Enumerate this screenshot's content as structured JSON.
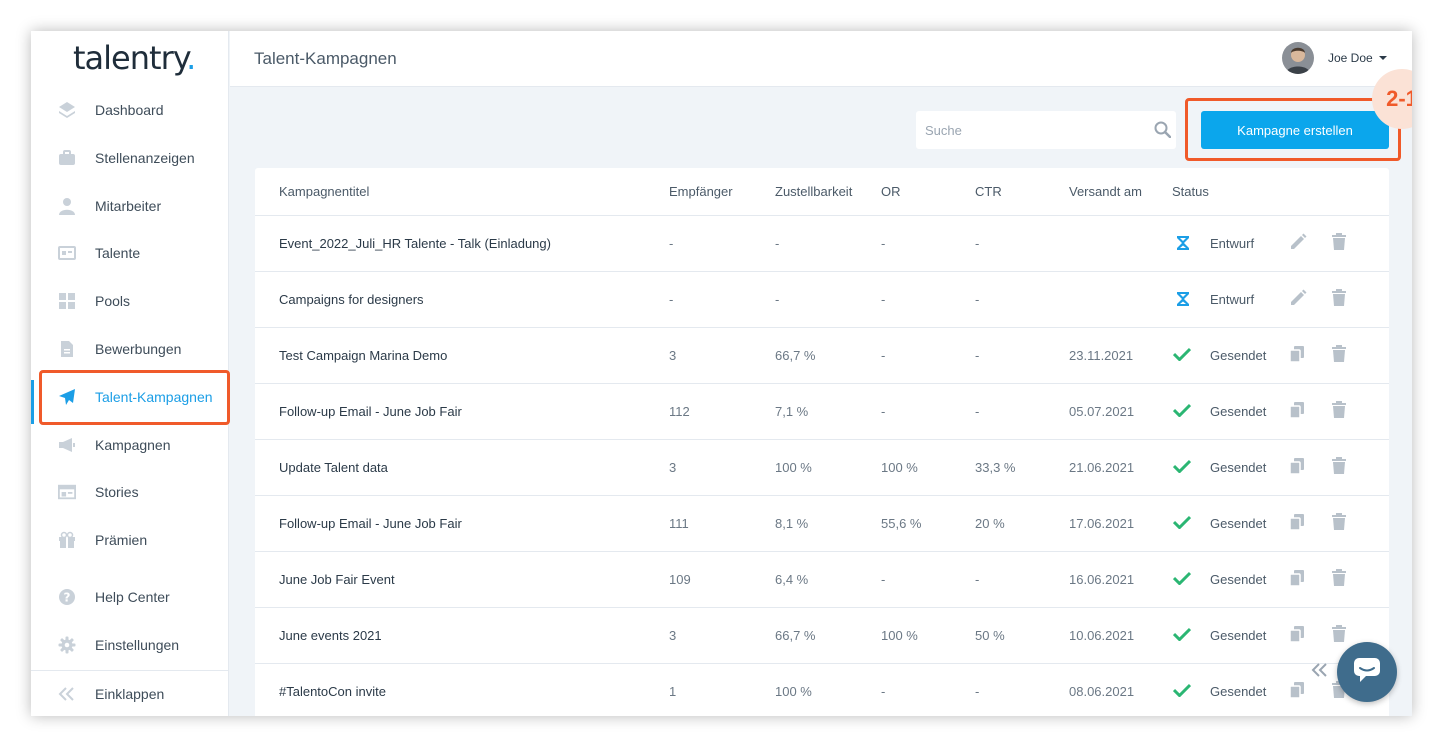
{
  "app": {
    "logo_text": "talentry",
    "logo_dot": "."
  },
  "header": {
    "title": "Talent-Kampagnen",
    "user_name": "Joe Doe"
  },
  "sidebar": {
    "items": [
      {
        "label": "Dashboard",
        "icon": "layers-icon"
      },
      {
        "label": "Stellenanzeigen",
        "icon": "briefcase-icon"
      },
      {
        "label": "Mitarbeiter",
        "icon": "person-icon"
      },
      {
        "label": "Talente",
        "icon": "id-card-icon"
      },
      {
        "label": "Pools",
        "icon": "grid-icon"
      },
      {
        "label": "Bewerbungen",
        "icon": "document-icon"
      },
      {
        "label": "Talent-Kampagnen",
        "icon": "paper-plane-icon",
        "active": true
      },
      {
        "label": "Kampagnen",
        "icon": "megaphone-icon"
      },
      {
        "label": "Stories",
        "icon": "newspaper-icon"
      },
      {
        "label": "Prämien",
        "icon": "gift-icon"
      },
      {
        "label": "Help Center",
        "icon": "help-icon"
      },
      {
        "label": "Einstellungen",
        "icon": "gear-icon"
      },
      {
        "label": "Einklappen",
        "icon": "double-chevron-left-icon"
      }
    ]
  },
  "toolbar": {
    "search_placeholder": "Suche",
    "create_label": "Kampagne erstellen",
    "step_badge": "2-1"
  },
  "table": {
    "columns": [
      "Kampagnentitel",
      "Empfänger",
      "Zustellbarkeit",
      "OR",
      "CTR",
      "Versandt am",
      "Status"
    ],
    "rows": [
      {
        "title": "Event_2022_Juli_HR Talente - Talk (Einladung)",
        "recipients": "-",
        "deliverability": "-",
        "or": "-",
        "ctr": "-",
        "sent": "",
        "status": "Entwurf"
      },
      {
        "title": "Campaigns for designers",
        "recipients": "-",
        "deliverability": "-",
        "or": "-",
        "ctr": "-",
        "sent": "",
        "status": "Entwurf"
      },
      {
        "title": "Test Campaign Marina Demo",
        "recipients": "3",
        "deliverability": "66,7 %",
        "or": "-",
        "ctr": "-",
        "sent": "23.11.2021",
        "status": "Gesendet"
      },
      {
        "title": "Follow-up Email - June Job Fair",
        "recipients": "112",
        "deliverability": "7,1 %",
        "or": "-",
        "ctr": "-",
        "sent": "05.07.2021",
        "status": "Gesendet"
      },
      {
        "title": "Update Talent data",
        "recipients": "3",
        "deliverability": "100 %",
        "or": "100 %",
        "ctr": "33,3 %",
        "sent": "21.06.2021",
        "status": "Gesendet"
      },
      {
        "title": "Follow-up Email - June Job Fair",
        "recipients": "111",
        "deliverability": "8,1 %",
        "or": "55,6 %",
        "ctr": "20 %",
        "sent": "17.06.2021",
        "status": "Gesendet"
      },
      {
        "title": "June Job Fair Event",
        "recipients": "109",
        "deliverability": "6,4 %",
        "or": "-",
        "ctr": "-",
        "sent": "16.06.2021",
        "status": "Gesendet"
      },
      {
        "title": "June events 2021",
        "recipients": "3",
        "deliverability": "66,7 %",
        "or": "100 %",
        "ctr": "50 %",
        "sent": "10.06.2021",
        "status": "Gesendet"
      },
      {
        "title": "#TalentoCon invite",
        "recipients": "1",
        "deliverability": "100 %",
        "or": "-",
        "ctr": "-",
        "sent": "08.06.2021",
        "status": "Gesendet"
      }
    ]
  },
  "colors": {
    "accent": "#0ba6ec",
    "highlight": "#f05a2a",
    "draft": "#1b9ee6",
    "sent": "#2bb673"
  }
}
